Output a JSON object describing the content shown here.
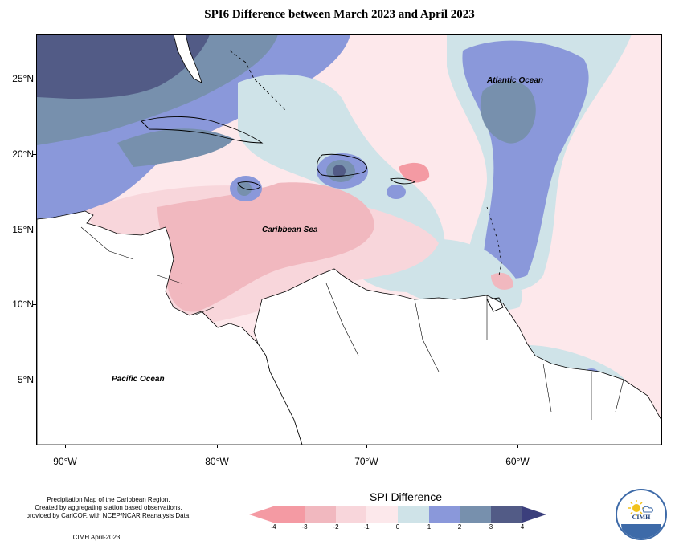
{
  "title": "SPI6 Difference between March 2023 and April 2023",
  "map": {
    "labels": {
      "atlantic": "Atlantic Ocean",
      "caribbean": "Caribbean Sea",
      "pacific": "Pacific Ocean"
    },
    "lat_ticks": [
      "25°N",
      "20°N",
      "15°N",
      "10°N",
      "5°N"
    ],
    "lon_ticks": [
      "90°W",
      "80°W",
      "70°W",
      "60°W"
    ]
  },
  "legend": {
    "title": "SPI Difference",
    "ticks": [
      "-4",
      "-3",
      "-2",
      "-1",
      "0",
      "1",
      "2",
      "3",
      "4"
    ],
    "colors": [
      "#f49aa3",
      "#f1b8bf",
      "#f8d6db",
      "#fce8eb",
      "#cfe3e8",
      "#8a98da",
      "#7790ad",
      "#525b86"
    ]
  },
  "credits": {
    "line1": "Precipitation Map of the Caribbean Region.",
    "line2": "Created by aggregating station based observations,",
    "line3": "provided by CariCOF, with NCEP/NCAR Reanalysis Data.",
    "footer": "CIMH April-2023"
  },
  "logo": {
    "text": "CIMH"
  }
}
